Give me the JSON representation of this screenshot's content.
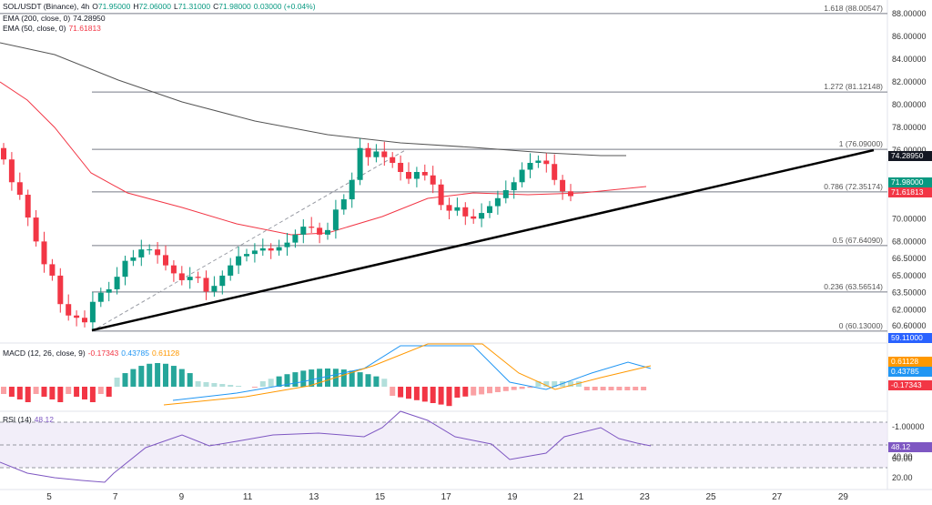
{
  "legend": {
    "symbol": "SOL/USDT (Binance), 4h",
    "ohlc": [
      {
        "k": "O",
        "v": "71.95000"
      },
      {
        "k": "H",
        "v": "72.06000"
      },
      {
        "k": "L",
        "v": "71.31000"
      },
      {
        "k": "C",
        "v": "71.98000"
      }
    ],
    "change": "0.03000 (+0.04%)",
    "ema200_label": "EMA (200, close, 0)",
    "ema200_value": "74.28950",
    "ema50_label": "EMA (50, close, 0)",
    "ema50_value": "71.61813",
    "macd_label": "MACD (12, 26, close, 9)",
    "macd_values": [
      "-0.17343",
      "0.43785",
      "0.61128"
    ],
    "rsi_label": "RSI (14)",
    "rsi_value": "48.12"
  },
  "fib_levels": [
    {
      "label": "1.618 (88.00547)",
      "price": 88.00547
    },
    {
      "label": "1.272 (81.12148)",
      "price": 81.12148
    },
    {
      "label": "1 (76.09000)",
      "price": 76.09
    },
    {
      "label": "0.786 (72.35174)",
      "price": 72.35174
    },
    {
      "label": "0.5 (67.64090)",
      "price": 67.6409
    },
    {
      "label": "0.236 (63.56514)",
      "price": 63.56514
    },
    {
      "label": "0 (60.13000)",
      "price": 60.13
    }
  ],
  "price_axis": [
    "88.00000",
    "86.00000",
    "84.00000",
    "82.00000",
    "80.00000",
    "78.00000",
    "76.00000",
    "70.00000",
    "68.00000",
    "66.50000",
    "65.00000",
    "63.50000",
    "62.00000",
    "60.60000"
  ],
  "price_badges": [
    {
      "text": "74.28950",
      "color": "#131722"
    },
    {
      "text": "71.98000",
      "color": "#089981"
    },
    {
      "text": "71.61813",
      "color": "#f23645"
    },
    {
      "text": "59.11000",
      "color": "#2962ff"
    }
  ],
  "macd_axis": [
    "-1.00000"
  ],
  "macd_badges": [
    {
      "text": "0.61128",
      "color": "#ff9800"
    },
    {
      "text": "0.43785",
      "color": "#2196f3"
    },
    {
      "text": "-0.17343",
      "color": "#f23645"
    }
  ],
  "rsi_axis": [
    "60.00",
    "40.00",
    "20.00"
  ],
  "rsi_badge": {
    "text": "48.12",
    "color": "#7e57c2"
  },
  "time_axis": [
    "5",
    "7",
    "9",
    "11",
    "13",
    "15",
    "17",
    "19",
    "21",
    "23",
    "25",
    "27",
    "29"
  ],
  "colors": {
    "up": "#089981",
    "down": "#f23645",
    "ema200": "#555555",
    "ema50": "#f23645",
    "macd": "#2196f3",
    "signal": "#ff9800",
    "rsi": "#7e57c2",
    "trendline": "#000000"
  },
  "chart_data": {
    "type": "candlestick",
    "symbol": "SOL/USDT",
    "timeframe": "4h",
    "close_series": [
      75.2,
      73.2,
      72.1,
      70.1,
      68.0,
      66.0,
      65.0,
      62.5,
      61.5,
      61.3,
      60.9,
      62.7,
      63.5,
      63.8,
      64.9,
      66.3,
      66.6,
      67.3,
      67.3,
      66.8,
      65.9,
      65.2,
      64.6,
      64.9,
      64.8,
      63.6,
      64.1,
      65.0,
      65.9,
      66.7,
      66.9,
      67.2,
      67.4,
      67.2,
      67.5,
      67.9,
      68.6,
      69.3,
      69.2,
      68.6,
      69.0,
      70.8,
      71.7,
      73.4,
      76.2,
      75.4,
      75.9,
      75.4,
      74.9,
      74.1,
      73.5,
      74.1,
      73.8,
      73.0,
      71.2,
      70.7,
      71.0,
      70.2,
      70.0,
      70.5,
      71.1,
      71.8,
      72.5,
      73.2,
      74.3,
      74.9,
      75.1,
      74.8,
      73.4,
      72.4,
      71.98
    ],
    "ema200_last": 74.2895,
    "ema50_last": 71.61813,
    "macd": {
      "macd": 0.43785,
      "signal": 0.61128,
      "histogram": -0.17343
    },
    "rsi": 48.12,
    "x_ticks": [
      "5",
      "7",
      "9",
      "11",
      "13",
      "15",
      "17",
      "19",
      "21",
      "23",
      "25",
      "27",
      "29"
    ]
  }
}
